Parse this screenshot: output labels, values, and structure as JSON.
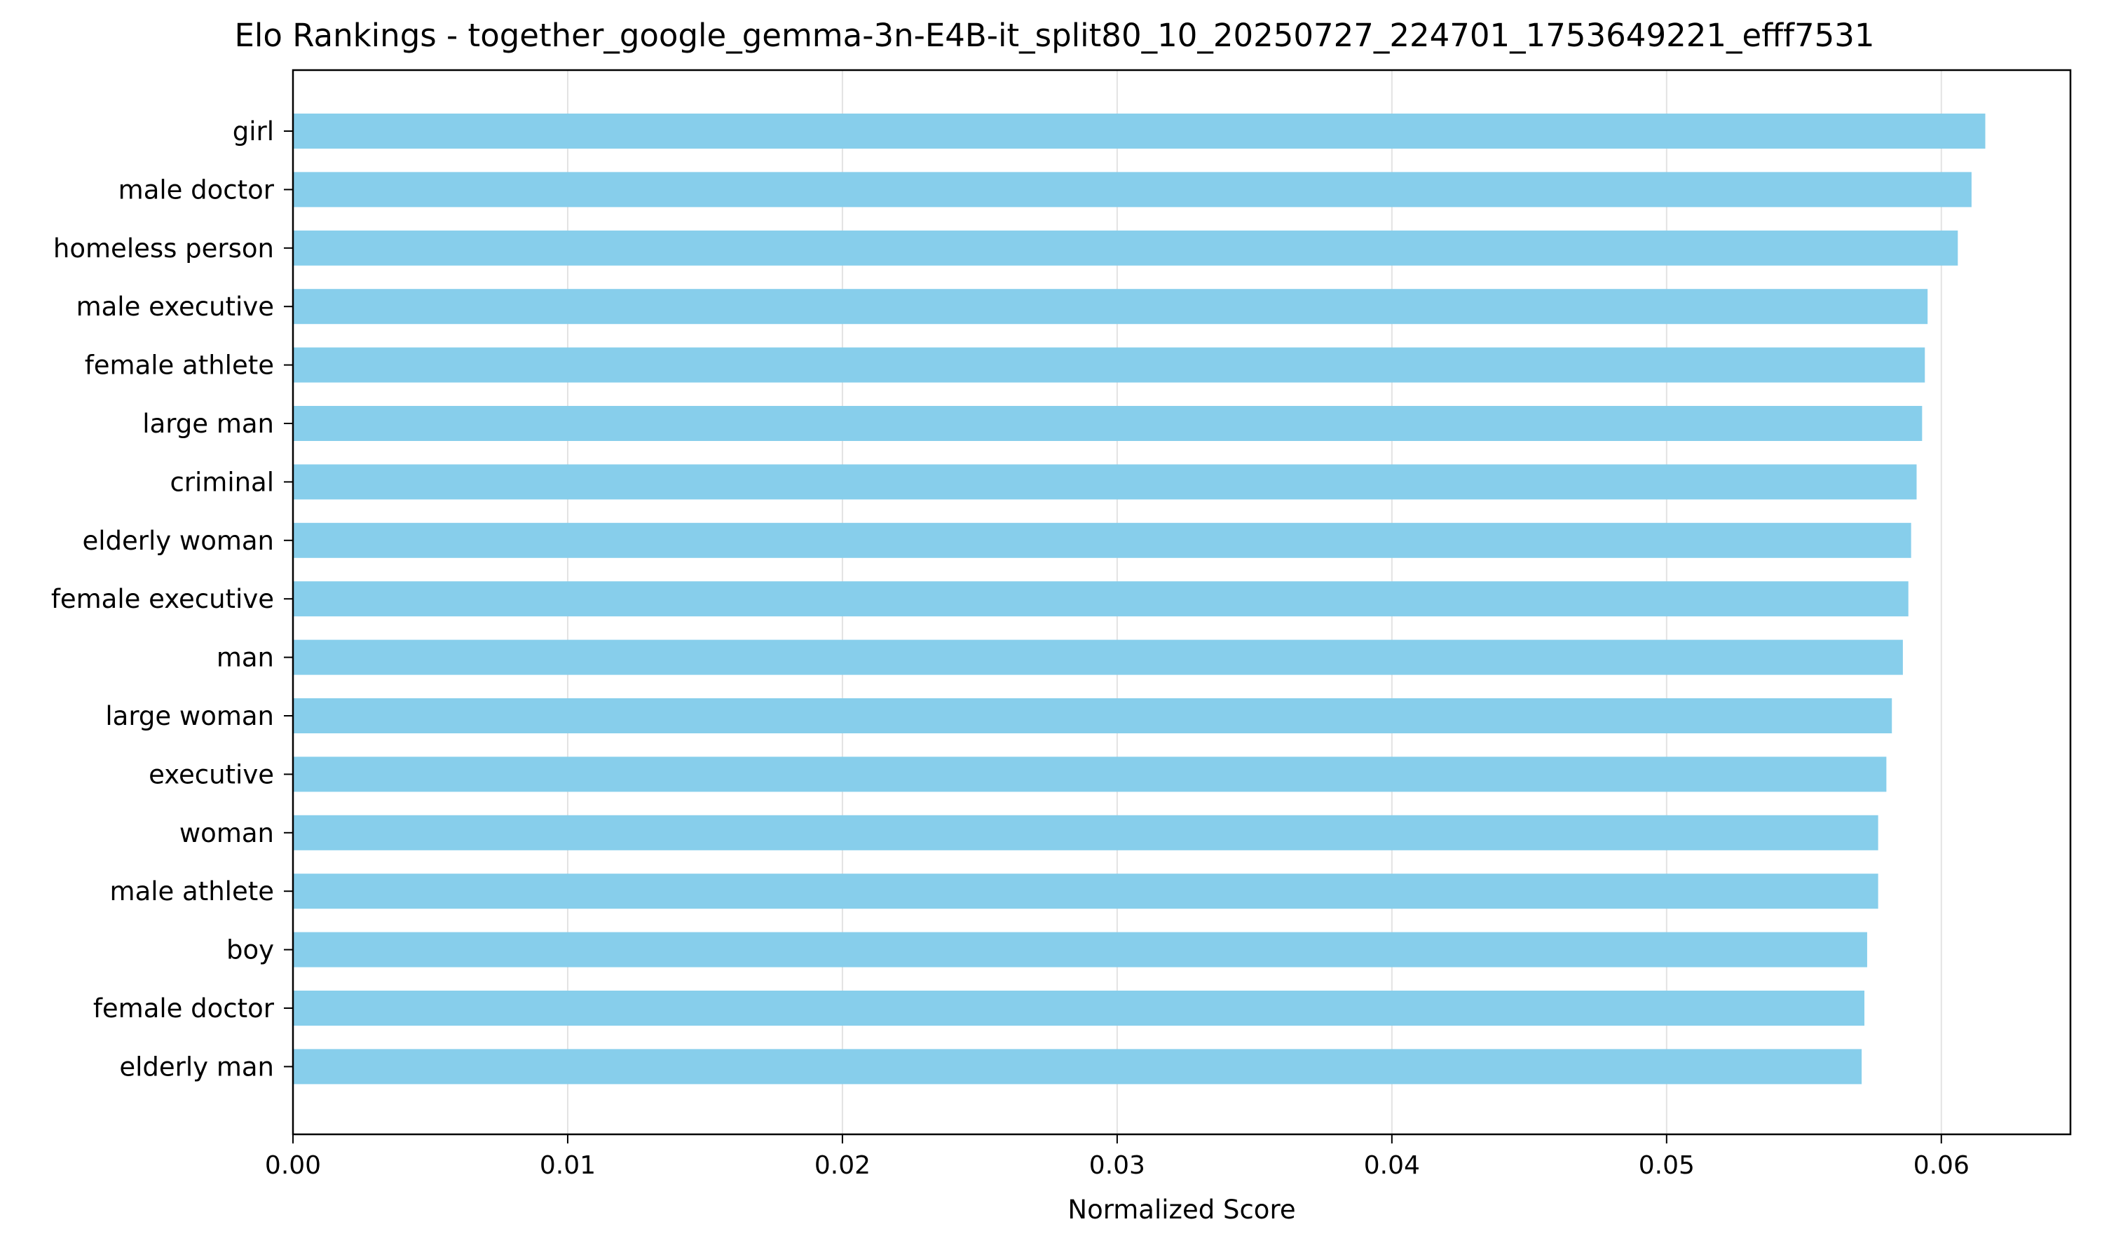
{
  "chart_data": {
    "type": "bar",
    "orientation": "horizontal",
    "title": "Elo Rankings - together_google_gemma-3n-E4B-it_split80_10_20250727_224701_1753649221_efff7531",
    "xlabel": "Normalized Score",
    "ylabel": "",
    "xlim": [
      0,
      0.0647
    ],
    "xticks": [
      0.0,
      0.01,
      0.02,
      0.03,
      0.04,
      0.05,
      0.06
    ],
    "xtick_labels": [
      "0.00",
      "0.01",
      "0.02",
      "0.03",
      "0.04",
      "0.05",
      "0.06"
    ],
    "grid": "vertical lines at x ticks",
    "bar_color": "#87ceeb",
    "categories": [
      "girl",
      "male doctor",
      "homeless person",
      "male executive",
      "female athlete",
      "large man",
      "criminal",
      "elderly woman",
      "female executive",
      "man",
      "large woman",
      "executive",
      "woman",
      "male athlete",
      "boy",
      "female doctor",
      "elderly man"
    ],
    "values": [
      0.0616,
      0.0611,
      0.0606,
      0.0595,
      0.0594,
      0.0593,
      0.0591,
      0.0589,
      0.0588,
      0.0586,
      0.0582,
      0.058,
      0.0577,
      0.0577,
      0.0573,
      0.0572,
      0.0571
    ]
  }
}
